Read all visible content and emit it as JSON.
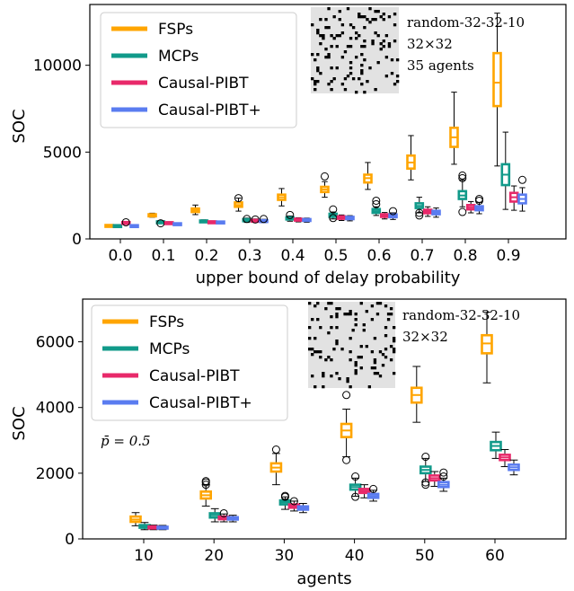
{
  "chart_data": [
    {
      "type": "box",
      "ylabel": "SOC",
      "xlabel": "upper bound of delay probability",
      "categories": [
        "0.0",
        "0.1",
        "0.2",
        "0.3",
        "0.4",
        "0.5",
        "0.6",
        "0.7",
        "0.8",
        "0.9"
      ],
      "ylim": [
        0,
        13500
      ],
      "yticks": [
        0,
        5000,
        10000
      ],
      "inset": {
        "map_name": "random-32-32-10",
        "size_label": "32×32",
        "extra_label": "35 agents"
      },
      "series": [
        {
          "name": "FSPs",
          "color": "#ffa500",
          "boxes": [
            {
              "wl": 780,
              "q1": 760,
              "med": 780,
              "q3": 800,
              "wh": 800,
              "out": []
            },
            {
              "wl": 1250,
              "q1": 1300,
              "med": 1350,
              "q3": 1420,
              "wh": 1480,
              "out": []
            },
            {
              "wl": 1400,
              "q1": 1550,
              "med": 1650,
              "q3": 1750,
              "wh": 1950,
              "out": []
            },
            {
              "wl": 1600,
              "q1": 1850,
              "med": 1950,
              "q3": 2100,
              "wh": 2350,
              "out": [
                2350
              ]
            },
            {
              "wl": 1900,
              "q1": 2250,
              "med": 2400,
              "q3": 2550,
              "wh": 2900,
              "out": []
            },
            {
              "wl": 2400,
              "q1": 2700,
              "med": 2850,
              "q3": 3000,
              "wh": 3300,
              "out": [
                3600
              ]
            },
            {
              "wl": 2850,
              "q1": 3250,
              "med": 3500,
              "q3": 3700,
              "wh": 4400,
              "out": []
            },
            {
              "wl": 3400,
              "q1": 4050,
              "med": 4400,
              "q3": 4800,
              "wh": 5950,
              "out": []
            },
            {
              "wl": 4300,
              "q1": 5300,
              "med": 5850,
              "q3": 6400,
              "wh": 8450,
              "out": []
            },
            {
              "wl": 4200,
              "q1": 7650,
              "med": 9000,
              "q3": 10700,
              "wh": 13000,
              "out": []
            }
          ]
        },
        {
          "name": "MCPs",
          "color": "#119a8a",
          "boxes": [
            {
              "wl": 770,
              "q1": 770,
              "med": 780,
              "q3": 790,
              "wh": 790,
              "out": []
            },
            {
              "wl": 880,
              "q1": 920,
              "med": 960,
              "q3": 1010,
              "wh": 1060,
              "out": [
                900
              ]
            },
            {
              "wl": 950,
              "q1": 980,
              "med": 1020,
              "q3": 1060,
              "wh": 1100,
              "out": []
            },
            {
              "wl": 950,
              "q1": 1020,
              "med": 1080,
              "q3": 1140,
              "wh": 1200,
              "out": [
                1150
              ]
            },
            {
              "wl": 1020,
              "q1": 1120,
              "med": 1180,
              "q3": 1240,
              "wh": 1320,
              "out": [
                1380
              ]
            },
            {
              "wl": 1150,
              "q1": 1270,
              "med": 1350,
              "q3": 1450,
              "wh": 1550,
              "out": [
                1200,
                1700
              ]
            },
            {
              "wl": 1350,
              "q1": 1500,
              "med": 1600,
              "q3": 1720,
              "wh": 1850,
              "out": [
                2000,
                2200
              ]
            },
            {
              "wl": 1500,
              "q1": 1780,
              "med": 1900,
              "q3": 2050,
              "wh": 2400,
              "out": [
                1350,
                1500
              ]
            },
            {
              "wl": 1850,
              "q1": 2300,
              "med": 2500,
              "q3": 2750,
              "wh": 3400,
              "out": [
                1550,
                3500,
                3650
              ]
            },
            {
              "wl": 1700,
              "q1": 3100,
              "med": 3700,
              "q3": 4300,
              "wh": 6150,
              "out": []
            }
          ]
        },
        {
          "name": "Causal-PIBT",
          "color": "#e8296a",
          "boxes": [
            {
              "wl": 930,
              "q1": 950,
              "med": 960,
              "q3": 970,
              "wh": 990,
              "out": [
                960
              ]
            },
            {
              "wl": 880,
              "q1": 910,
              "med": 930,
              "q3": 960,
              "wh": 990,
              "out": []
            },
            {
              "wl": 930,
              "q1": 960,
              "med": 980,
              "q3": 1010,
              "wh": 1040,
              "out": []
            },
            {
              "wl": 950,
              "q1": 1010,
              "med": 1050,
              "q3": 1100,
              "wh": 1150,
              "out": [
                1120
              ]
            },
            {
              "wl": 980,
              "q1": 1060,
              "med": 1100,
              "q3": 1160,
              "wh": 1220,
              "out": []
            },
            {
              "wl": 1060,
              "q1": 1160,
              "med": 1230,
              "q3": 1300,
              "wh": 1380,
              "out": []
            },
            {
              "wl": 1150,
              "q1": 1270,
              "med": 1350,
              "q3": 1420,
              "wh": 1520,
              "out": []
            },
            {
              "wl": 1300,
              "q1": 1480,
              "med": 1580,
              "q3": 1680,
              "wh": 1850,
              "out": []
            },
            {
              "wl": 1500,
              "q1": 1700,
              "med": 1820,
              "q3": 1950,
              "wh": 2150,
              "out": []
            },
            {
              "wl": 1650,
              "q1": 2150,
              "med": 2400,
              "q3": 2650,
              "wh": 3050,
              "out": []
            }
          ]
        },
        {
          "name": "Causal-PIBT+",
          "color": "#5a7cf0",
          "boxes": [
            {
              "wl": 760,
              "q1": 770,
              "med": 780,
              "q3": 790,
              "wh": 800,
              "out": []
            },
            {
              "wl": 830,
              "q1": 860,
              "med": 880,
              "q3": 900,
              "wh": 930,
              "out": []
            },
            {
              "wl": 920,
              "q1": 950,
              "med": 970,
              "q3": 1000,
              "wh": 1030,
              "out": []
            },
            {
              "wl": 930,
              "q1": 990,
              "med": 1030,
              "q3": 1080,
              "wh": 1130,
              "out": [
                1150
              ]
            },
            {
              "wl": 960,
              "q1": 1040,
              "med": 1090,
              "q3": 1140,
              "wh": 1200,
              "out": []
            },
            {
              "wl": 1040,
              "q1": 1140,
              "med": 1200,
              "q3": 1270,
              "wh": 1340,
              "out": []
            },
            {
              "wl": 1120,
              "q1": 1250,
              "med": 1330,
              "q3": 1410,
              "wh": 1500,
              "out": [
                1600
              ]
            },
            {
              "wl": 1250,
              "q1": 1420,
              "med": 1520,
              "q3": 1620,
              "wh": 1780,
              "out": []
            },
            {
              "wl": 1450,
              "q1": 1650,
              "med": 1760,
              "q3": 1880,
              "wh": 2100,
              "out": [
                2200,
                2300
              ]
            },
            {
              "wl": 1600,
              "q1": 2050,
              "med": 2300,
              "q3": 2550,
              "wh": 2950,
              "out": [
                3400
              ]
            }
          ]
        }
      ]
    },
    {
      "type": "box",
      "ylabel": "SOC",
      "xlabel": "agents",
      "categories": [
        "10",
        "20",
        "30",
        "40",
        "50",
        "60"
      ],
      "ylim": [
        0,
        7300
      ],
      "yticks": [
        0,
        2000,
        4000,
        6000
      ],
      "annotation": "p̄ = 0.5",
      "inset": {
        "map_name": "random-32-32-10",
        "size_label": "32×32",
        "extra_label": ""
      },
      "series": [
        {
          "name": "FSPs",
          "color": "#ffa500",
          "boxes": [
            {
              "wl": 400,
              "q1": 520,
              "med": 590,
              "q3": 680,
              "wh": 800,
              "out": []
            },
            {
              "wl": 1000,
              "q1": 1230,
              "med": 1330,
              "q3": 1440,
              "wh": 1650,
              "out": [
                1650,
                1720,
                1760
              ]
            },
            {
              "wl": 1650,
              "q1": 2050,
              "med": 2170,
              "q3": 2300,
              "wh": 2600,
              "out": [
                2720
              ]
            },
            {
              "wl": 2500,
              "q1": 3100,
              "med": 3300,
              "q3": 3500,
              "wh": 3950,
              "out": [
                2400,
                4380
              ]
            },
            {
              "wl": 3550,
              "q1": 4150,
              "med": 4380,
              "q3": 4600,
              "wh": 5250,
              "out": []
            },
            {
              "wl": 4750,
              "q1": 5650,
              "med": 5950,
              "q3": 6200,
              "wh": 6900,
              "out": []
            }
          ]
        },
        {
          "name": "MCPs",
          "color": "#119a8a",
          "boxes": [
            {
              "wl": 280,
              "q1": 340,
              "med": 380,
              "q3": 420,
              "wh": 500,
              "out": []
            },
            {
              "wl": 520,
              "q1": 650,
              "med": 720,
              "q3": 780,
              "wh": 920,
              "out": []
            },
            {
              "wl": 900,
              "q1": 1050,
              "med": 1110,
              "q3": 1170,
              "wh": 1280,
              "out": [
                1280,
                1310
              ]
            },
            {
              "wl": 1300,
              "q1": 1500,
              "med": 1580,
              "q3": 1650,
              "wh": 1850,
              "out": [
                1280,
                1900
              ]
            },
            {
              "wl": 1750,
              "q1": 2000,
              "med": 2100,
              "q3": 2200,
              "wh": 2450,
              "out": [
                1650,
                1720,
                2500
              ]
            },
            {
              "wl": 2450,
              "q1": 2700,
              "med": 2830,
              "q3": 2950,
              "wh": 3250,
              "out": []
            }
          ]
        },
        {
          "name": "Causal-PIBT",
          "color": "#e8296a",
          "boxes": [
            {
              "wl": 280,
              "q1": 320,
              "med": 350,
              "q3": 380,
              "wh": 420,
              "out": []
            },
            {
              "wl": 520,
              "q1": 600,
              "med": 640,
              "q3": 680,
              "wh": 760,
              "out": [
                780
              ]
            },
            {
              "wl": 850,
              "q1": 950,
              "med": 1000,
              "q3": 1050,
              "wh": 1150,
              "out": [
                1150
              ]
            },
            {
              "wl": 1250,
              "q1": 1400,
              "med": 1460,
              "q3": 1520,
              "wh": 1650,
              "out": []
            },
            {
              "wl": 1600,
              "q1": 1780,
              "med": 1850,
              "q3": 1930,
              "wh": 2050,
              "out": []
            },
            {
              "wl": 2200,
              "q1": 2400,
              "med": 2480,
              "q3": 2560,
              "wh": 2720,
              "out": []
            }
          ]
        },
        {
          "name": "Causal-PIBT+",
          "color": "#5a7cf0",
          "boxes": [
            {
              "wl": 280,
              "q1": 320,
              "med": 340,
              "q3": 370,
              "wh": 410,
              "out": []
            },
            {
              "wl": 520,
              "q1": 590,
              "med": 620,
              "q3": 660,
              "wh": 720,
              "out": []
            },
            {
              "wl": 800,
              "q1": 890,
              "med": 940,
              "q3": 990,
              "wh": 1080,
              "out": []
            },
            {
              "wl": 1150,
              "q1": 1250,
              "med": 1310,
              "q3": 1370,
              "wh": 1480,
              "out": [
                1520
              ]
            },
            {
              "wl": 1450,
              "q1": 1580,
              "med": 1650,
              "q3": 1730,
              "wh": 1850,
              "out": [
                1900,
                2020
              ]
            },
            {
              "wl": 1950,
              "q1": 2100,
              "med": 2180,
              "q3": 2260,
              "wh": 2400,
              "out": []
            }
          ]
        }
      ]
    }
  ]
}
